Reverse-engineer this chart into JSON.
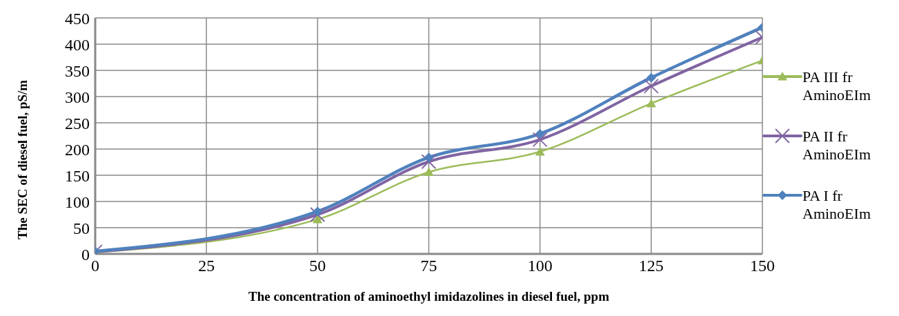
{
  "chart_data": {
    "type": "line",
    "xlabel": "The concentration of aminoethyl imidazolines in diesel fuel, ppm",
    "ylabel": "The SEC of diesel fuel, pS/m",
    "x": [
      0,
      50,
      75,
      100,
      125,
      150
    ],
    "series": [
      {
        "name": "PA III fr AminoEIm",
        "color": "#9bbb59",
        "marker": "triangle",
        "values": [
          3,
          66,
          156,
          195,
          287,
          369
        ]
      },
      {
        "name": "PA II fr AminoEIm",
        "color": "#8064a2",
        "marker": "cross",
        "values": [
          4,
          75,
          176,
          218,
          320,
          413
        ]
      },
      {
        "name": "PA I fr AminoEIm",
        "color": "#4f81bd",
        "marker": "diamond",
        "values": [
          5,
          81,
          184,
          229,
          336,
          432
        ]
      }
    ],
    "xlim": [
      0,
      150
    ],
    "xticks": [
      0,
      25,
      50,
      75,
      100,
      125,
      150
    ],
    "ylim": [
      0,
      450
    ],
    "yticks": [
      0,
      50,
      100,
      150,
      200,
      250,
      300,
      350,
      400,
      450
    ],
    "grid": true,
    "legend": "right"
  }
}
